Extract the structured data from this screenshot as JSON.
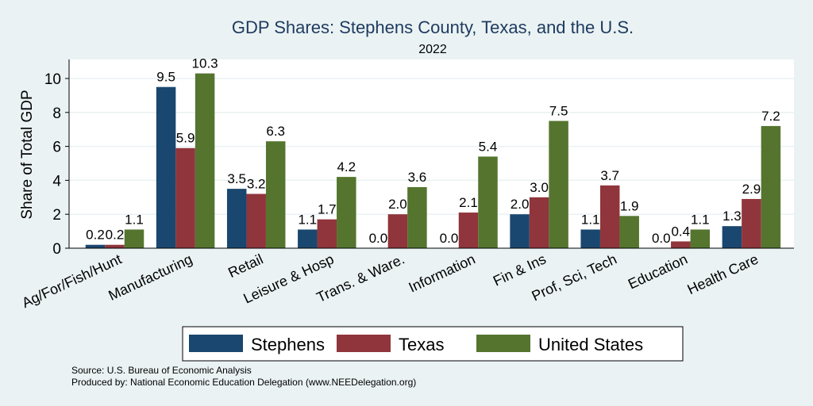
{
  "chart_data": {
    "type": "bar",
    "title": "GDP Shares: Stephens County, Texas, and the U.S.",
    "subtitle": "2022",
    "xlabel": "",
    "ylabel": "Share of Total GDP",
    "ylim": [
      0,
      11
    ],
    "yticks": [
      0,
      2,
      4,
      6,
      8,
      10
    ],
    "grid": true,
    "legend_position": "bottom",
    "categories": [
      "Ag/For/Fish/Hunt",
      "Manufacturing",
      "Retail",
      "Leisure & Hosp",
      "Trans. & Ware.",
      "Information",
      "Fin & Ins",
      "Prof, Sci, Tech",
      "Education",
      "Health Care"
    ],
    "series": [
      {
        "name": "Stephens",
        "color": "#1a476f",
        "values": [
          0.2,
          9.5,
          3.5,
          1.1,
          0.0,
          0.0,
          2.0,
          1.1,
          0.0,
          1.3
        ]
      },
      {
        "name": "Texas",
        "color": "#90353b",
        "values": [
          0.2,
          5.9,
          3.2,
          1.7,
          2.0,
          2.1,
          3.0,
          3.7,
          0.4,
          2.9
        ]
      },
      {
        "name": "United States",
        "color": "#55752f",
        "values": [
          1.1,
          10.3,
          6.3,
          4.2,
          3.6,
          5.4,
          7.5,
          1.9,
          1.1,
          7.2
        ]
      }
    ]
  },
  "notes": {
    "source": "Source: U.S. Bureau of Economic Analysis",
    "produced": "Produced by: National Economic Education Delegation (www.NEEDelegation.org)"
  }
}
